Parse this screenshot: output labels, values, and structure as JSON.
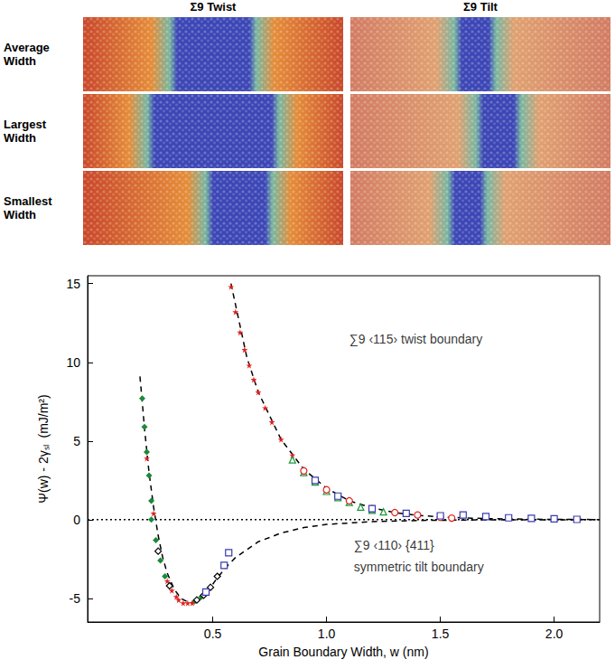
{
  "figure_panels": {
    "columns": [
      "Σ9 Twist",
      "Σ9 Tilt"
    ],
    "rows": [
      "Average Width",
      "Largest Width",
      "Smallest Width"
    ]
  },
  "chart_data": {
    "type": "scatter",
    "x_label": "Grain Boundary Width, w (nm)",
    "y_label": "Ψ(w) - 2γₛₗ  (mJ/m²)",
    "xlim": [
      -0.05,
      2.2
    ],
    "ylim": [
      -6.5,
      15.5
    ],
    "xticks": [
      0.5,
      {
        "value": 1,
        "label": "1.0"
      },
      1.5,
      {
        "value": 2,
        "label": "2.0"
      }
    ],
    "yticks": [
      -5,
      0,
      5,
      10,
      15
    ],
    "grid": false,
    "series": [
      {
        "type": "line",
        "line_style": "dotted",
        "color": "#000000",
        "x": [
          -0.05,
          2.2
        ],
        "values": [
          0,
          0
        ]
      },
      {
        "type": "line",
        "line_style": "dashed",
        "color": "#000000",
        "x": [
          0.58,
          0.65,
          0.7,
          0.8,
          0.9,
          1.0,
          1.1,
          1.2,
          1.3,
          1.4,
          1.5,
          1.7,
          1.9,
          2.2
        ],
        "values": [
          15,
          10.3,
          8.1,
          5.1,
          3.2,
          2.0,
          1.2,
          0.75,
          0.45,
          0.28,
          0.17,
          0.07,
          0.03,
          0.01
        ]
      },
      {
        "type": "line",
        "line_style": "dashed",
        "color": "#000000",
        "x": [
          0.18,
          0.19,
          0.2,
          0.22,
          0.24,
          0.26,
          0.28,
          0.3,
          0.33,
          0.36,
          0.4,
          0.44,
          0.48,
          0.52,
          0.56,
          0.6,
          0.7,
          0.8,
          0.9,
          1.0,
          1.2,
          1.4,
          1.7,
          2.2
        ],
        "values": [
          9.1,
          7.5,
          5.8,
          3.0,
          0.8,
          -1.0,
          -2.4,
          -3.4,
          -4.4,
          -5.0,
          -5.3,
          -5.1,
          -4.5,
          -3.7,
          -3.0,
          -2.4,
          -1.4,
          -0.85,
          -0.5,
          -0.3,
          -0.12,
          -0.05,
          -0.01,
          0
        ]
      },
      {
        "type": "scatter",
        "marker": "star",
        "color": "#e0201e",
        "x": [
          0.58,
          0.6,
          0.62,
          0.64,
          0.66,
          0.68,
          0.7,
          0.73,
          0.76,
          0.8,
          0.85,
          0.9
        ],
        "values": [
          14.8,
          13.2,
          11.9,
          10.8,
          9.8,
          8.9,
          8.1,
          7.1,
          6.2,
          5.1,
          4.1,
          3.2
        ]
      },
      {
        "type": "scatter",
        "marker": "open_triangle",
        "color": "#1a9a3a",
        "x": [
          0.85,
          0.9,
          0.95,
          1.0,
          1.05,
          1.1,
          1.15,
          1.2,
          1.25
        ],
        "values": [
          3.8,
          3.0,
          2.4,
          1.8,
          1.4,
          1.1,
          0.8,
          0.6,
          0.5
        ]
      },
      {
        "type": "scatter",
        "marker": "open_circle",
        "color": "#e0201e",
        "x": [
          0.9,
          1.0,
          1.1,
          1.2,
          1.3,
          1.4,
          1.5,
          1.55
        ],
        "values": [
          3.1,
          1.9,
          1.2,
          0.7,
          0.45,
          0.3,
          0.15,
          0.1
        ]
      },
      {
        "type": "scatter",
        "marker": "open_square",
        "color": "#3a3ab0",
        "x": [
          0.95,
          1.05,
          1.2,
          1.35,
          1.5,
          1.6,
          1.7,
          1.8,
          1.9,
          2.0,
          2.1
        ],
        "values": [
          2.5,
          1.5,
          0.7,
          0.4,
          0.25,
          0.3,
          0.2,
          0.12,
          0.08,
          0.05,
          0.02
        ]
      },
      {
        "type": "scatter",
        "marker": "diamond",
        "color": "#1a8a3a",
        "x": [
          0.19,
          0.2,
          0.21,
          0.22,
          0.23,
          0.23,
          0.25,
          0.27,
          0.29,
          0.42,
          0.45
        ],
        "values": [
          7.7,
          5.9,
          4.3,
          2.8,
          1.2,
          0.0,
          -1.3,
          -2.6,
          -3.6,
          -5.2,
          -4.9
        ]
      },
      {
        "type": "scatter",
        "marker": "star",
        "color": "#e0201e",
        "x": [
          0.21,
          0.24,
          0.3,
          0.32,
          0.34,
          0.35,
          0.37,
          0.39,
          0.41
        ],
        "values": [
          3.9,
          0.4,
          -3.9,
          -4.5,
          -4.9,
          -5.1,
          -5.3,
          -5.3,
          -5.3
        ]
      },
      {
        "type": "scatter",
        "marker": "open_diamond",
        "color": "#000000",
        "x": [
          0.26,
          0.31,
          0.43,
          0.46,
          0.49,
          0.52
        ],
        "values": [
          -2.0,
          -4.2,
          -5.1,
          -4.8,
          -4.3,
          -3.6
        ]
      },
      {
        "type": "scatter",
        "marker": "open_square",
        "color": "#3a3ab0",
        "x": [
          0.47,
          0.55,
          0.57
        ],
        "values": [
          -4.6,
          -2.9,
          -2.1
        ]
      }
    ],
    "annotations": [
      {
        "text": "∑9 ‹115› twist boundary",
        "x": 1.1,
        "y": 11.5
      },
      {
        "text": "∑9 ‹110› {411}",
        "x": 1.12,
        "y": -1.6
      },
      {
        "text": "symmetric tilt boundary",
        "x": 1.12,
        "y": -3.0
      }
    ]
  }
}
